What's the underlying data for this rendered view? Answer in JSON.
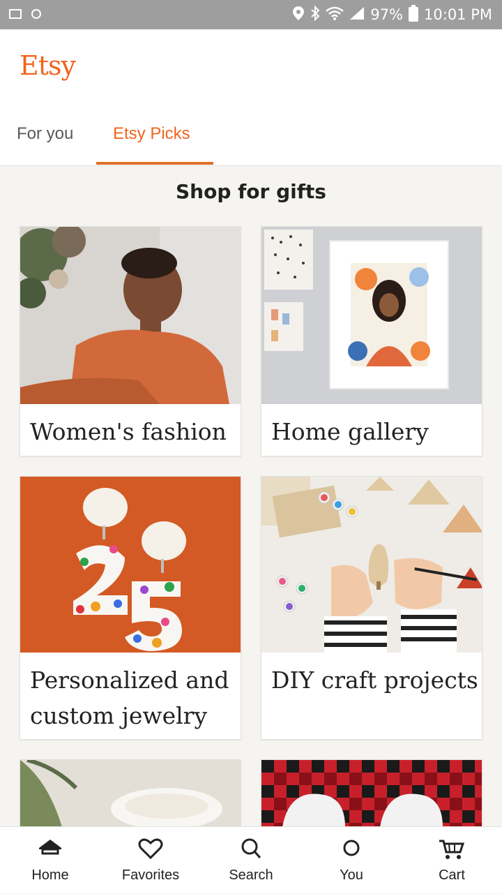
{
  "status_bar": {
    "battery": "97%",
    "time": "10:01 PM",
    "icons": [
      "location-icon",
      "bluetooth-icon",
      "wifi-icon",
      "signal-icon",
      "battery-icon"
    ]
  },
  "header": {
    "logo": "Etsy",
    "tabs": [
      {
        "label": "For you",
        "active": false
      },
      {
        "label": "Etsy Picks",
        "active": true
      }
    ],
    "accent_color": "#f1641e"
  },
  "main": {
    "section_title": "Shop for gifts",
    "cards": [
      {
        "caption": "Women's fashion"
      },
      {
        "caption": "Home gallery"
      },
      {
        "caption": "Personalized and custom jewelry"
      },
      {
        "caption": "DIY craft projects"
      },
      {
        "caption": ""
      },
      {
        "caption": ""
      }
    ]
  },
  "bottom_nav": {
    "items": [
      {
        "label": "Home",
        "icon": "home-icon"
      },
      {
        "label": "Favorites",
        "icon": "heart-icon"
      },
      {
        "label": "Search",
        "icon": "search-icon"
      },
      {
        "label": "You",
        "icon": "profile-icon"
      },
      {
        "label": "Cart",
        "icon": "cart-icon"
      }
    ]
  }
}
